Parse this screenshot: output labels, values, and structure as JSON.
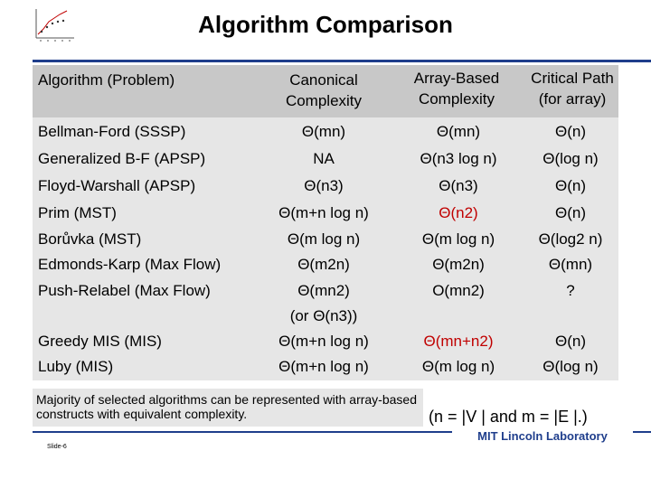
{
  "title": "Algorithm Comparison",
  "headers": {
    "col0": "Algorithm (Problem)",
    "col1": "Canonical Complexity",
    "col2": "Array-Based Complexity",
    "col3": "Critical Path (for array)"
  },
  "rows": [
    {
      "algorithm": "Bellman-Ford (SSSP)",
      "canonical": "Θ(mn)",
      "array": "Θ(mn)",
      "critical": "Θ(n)"
    },
    {
      "algorithm": "Generalized B-F (APSP)",
      "canonical": "NA",
      "array": "Θ(n3 log n)",
      "critical": "Θ(log n)"
    },
    {
      "algorithm": "Floyd-Warshall (APSP)",
      "canonical": "Θ(n3)",
      "array": "Θ(n3)",
      "critical": "Θ(n)"
    },
    {
      "algorithm": "Prim (MST)",
      "canonical": "Θ(m+n log n)",
      "array": "Θ(n2)",
      "critical": "Θ(n)"
    },
    {
      "algorithm": "Borůvka (MST)",
      "canonical": "Θ(m log n)",
      "array": "Θ(m log n)",
      "critical": "Θ(log2 n)"
    },
    {
      "algorithm": "Edmonds-Karp (Max Flow)",
      "canonical": "Θ(m2n)",
      "array": "Θ(m2n)",
      "critical": "Θ(mn)"
    },
    {
      "algorithm": "Push-Relabel (Max Flow)",
      "canonical": "Θ(mn2)",
      "array": "O(mn2)",
      "critical": "?"
    },
    {
      "algorithm": "",
      "canonical": "(or Θ(n3))",
      "array": "",
      "critical": ""
    },
    {
      "algorithm": "Greedy MIS (MIS)",
      "canonical": "Θ(m+n log n)",
      "array": "Θ(mn+n2)",
      "critical": "Θ(n)"
    },
    {
      "algorithm": "Luby (MIS)",
      "canonical": "Θ(m+n log n)",
      "array": "Θ(m log n)",
      "critical": "Θ(log n)"
    }
  ],
  "summary": "Majority of selected algorithms can be represented with array-based constructs with equivalent complexity.",
  "note": "(n = |V | and m = |E |.)",
  "footer": {
    "lab": "MIT Lincoln Laboratory",
    "slide": "Slide-6"
  },
  "colors": {
    "accent": "#1f3e8c",
    "highlight": "#c00000",
    "header_bg": "#c8c8c8",
    "body_bg": "#e6e6e6"
  }
}
